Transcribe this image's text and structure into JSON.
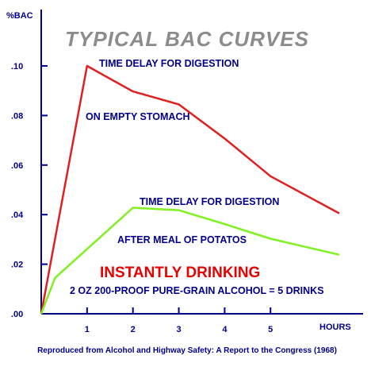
{
  "chart_data": {
    "type": "line",
    "title": "TYPICAL BAC CURVES",
    "ylabel": "%BAC",
    "xlabel": "HOURS",
    "xlim": [
      0,
      6.5
    ],
    "ylim": [
      0,
      0.1
    ],
    "x_ticks": [
      1,
      2,
      3,
      4,
      5
    ],
    "x_tick_labels": [
      "1",
      "2",
      "3",
      "4",
      "5"
    ],
    "y_ticks": [
      0,
      0.02,
      0.04,
      0.06,
      0.08,
      0.1
    ],
    "y_tick_labels": [
      ".00",
      ".02",
      ".04",
      ".06",
      ".08",
      ".10"
    ],
    "grid": false,
    "series": [
      {
        "color": "#e02020",
        "x": [
          0,
          1,
          2,
          3,
          4,
          5,
          6.5
        ],
        "y": [
          0,
          0.1,
          0.0897,
          0.0845,
          0.0707,
          0.0555,
          0.0405
        ]
      },
      {
        "color": "#80f020",
        "x": [
          0,
          0.3,
          2,
          3,
          4,
          5,
          6.5
        ],
        "y": [
          0,
          0.0145,
          0.0428,
          0.0418,
          0.0362,
          0.0303,
          0.0238
        ]
      }
    ],
    "annotations": [
      "TIME DELAY FOR DIGESTION",
      "ON EMPTY STOMACH",
      "TIME DELAY FOR DIGESTION",
      "AFTER MEAL OF POTATOS",
      "INSTANTLY DRINKING",
      "2 OZ 200-PROOF PURE-GRAIN ALCOHOL = 5 DRINKS"
    ],
    "source": "Reproduced from Alcohol and Highway Safety: A Report to the Congress (1968)"
  },
  "colors": {
    "axis": "#00008b",
    "title": "#8c8c8c",
    "highlight": "#e60000",
    "background": "#ffffff"
  }
}
